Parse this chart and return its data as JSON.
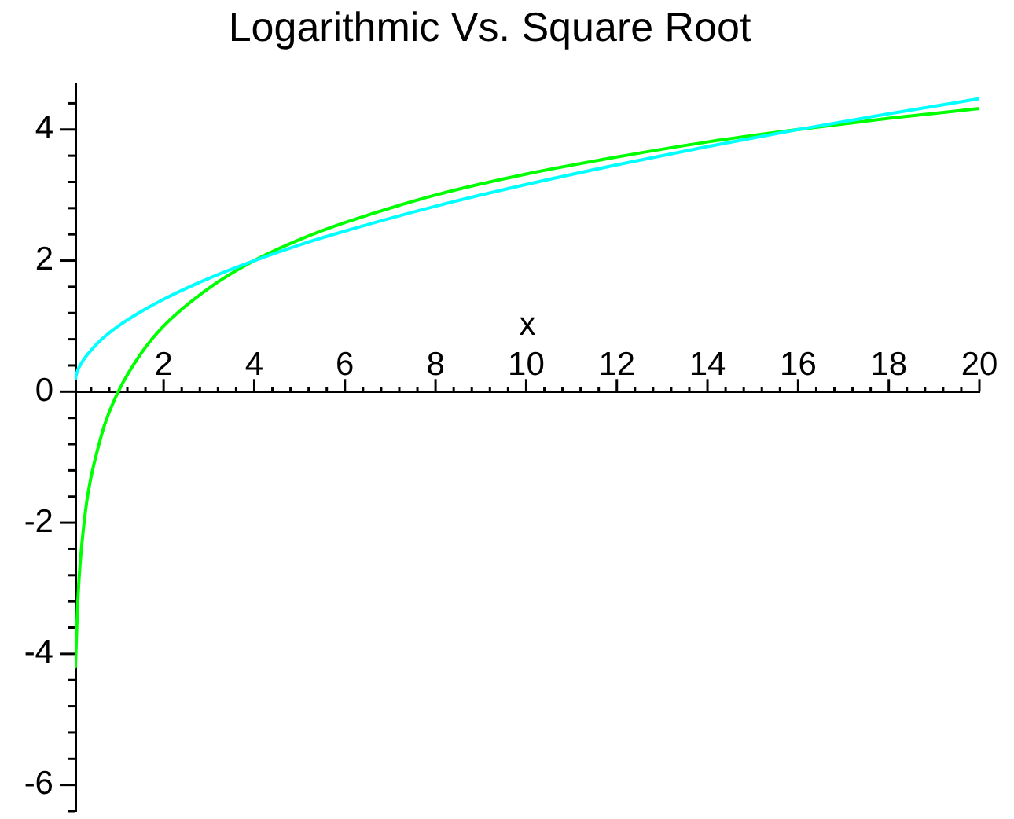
{
  "chart_data": {
    "type": "line",
    "title": "Logarithmic Vs. Square Root",
    "xlabel": "x",
    "x": [
      0.055,
      0.1,
      0.15,
      0.2,
      0.3,
      0.4,
      0.5,
      0.7,
      1,
      1.5,
      2,
      3,
      4,
      5,
      6,
      8,
      10,
      12,
      14,
      16,
      18,
      20
    ],
    "series": [
      {
        "color": "#00ffff",
        "values": [
          0.2,
          0.32,
          0.39,
          0.45,
          0.55,
          0.63,
          0.71,
          0.84,
          1.0,
          1.22,
          1.41,
          1.73,
          2.0,
          2.24,
          2.45,
          2.83,
          3.16,
          3.46,
          3.74,
          4.0,
          4.24,
          4.47
        ]
      },
      {
        "color": "#00ff00",
        "values": [
          -4.2,
          -3.3,
          -2.7,
          -2.3,
          -1.7,
          -1.3,
          -1.0,
          -0.5,
          0,
          0.58,
          1.0,
          1.58,
          2.0,
          2.32,
          2.58,
          3.0,
          3.32,
          3.58,
          3.81,
          4.0,
          4.17,
          4.32
        ]
      }
    ],
    "xlim": [
      0.055,
      20
    ],
    "ylim": [
      -6.4,
      4.7
    ],
    "xticks": [
      {
        "value": 0.4,
        "label": null
      },
      {
        "value": 0.8,
        "label": null
      },
      {
        "value": 1.2,
        "label": null
      },
      {
        "value": 1.6,
        "label": null
      },
      2,
      {
        "value": 2.4,
        "label": null
      },
      {
        "value": 2.8,
        "label": null
      },
      {
        "value": 3.2,
        "label": null
      },
      {
        "value": 3.6,
        "label": null
      },
      4,
      {
        "value": 4.4,
        "label": null
      },
      {
        "value": 4.8,
        "label": null
      },
      {
        "value": 5.2,
        "label": null
      },
      {
        "value": 5.6,
        "label": null
      },
      6,
      {
        "value": 6.4,
        "label": null
      },
      {
        "value": 6.8,
        "label": null
      },
      {
        "value": 7.2,
        "label": null
      },
      {
        "value": 7.6,
        "label": null
      },
      8,
      {
        "value": 8.4,
        "label": null
      },
      {
        "value": 8.8,
        "label": null
      },
      {
        "value": 9.2,
        "label": null
      },
      {
        "value": 9.6,
        "label": null
      },
      10,
      {
        "value": 10.4,
        "label": null
      },
      {
        "value": 10.8,
        "label": null
      },
      {
        "value": 11.2,
        "label": null
      },
      {
        "value": 11.6,
        "label": null
      },
      12,
      {
        "value": 12.4,
        "label": null
      },
      {
        "value": 12.8,
        "label": null
      },
      {
        "value": 13.2,
        "label": null
      },
      {
        "value": 13.6,
        "label": null
      },
      14,
      {
        "value": 14.4,
        "label": null
      },
      {
        "value": 14.8,
        "label": null
      },
      {
        "value": 15.2,
        "label": null
      },
      {
        "value": 15.6,
        "label": null
      },
      16,
      {
        "value": 16.4,
        "label": null
      },
      {
        "value": 16.8,
        "label": null
      },
      {
        "value": 17.2,
        "label": null
      },
      {
        "value": 17.6,
        "label": null
      },
      18,
      {
        "value": 18.4,
        "label": null
      },
      {
        "value": 18.8,
        "label": null
      },
      {
        "value": 19.2,
        "label": null
      },
      {
        "value": 19.6,
        "label": null
      },
      20
    ],
    "yticks": [
      {
        "value": -6.4,
        "label": null
      },
      -6,
      {
        "value": -5.6,
        "label": null
      },
      {
        "value": -5.2,
        "label": null
      },
      {
        "value": -4.8,
        "label": null
      },
      {
        "value": -4.4,
        "label": null
      },
      -4,
      {
        "value": -3.6,
        "label": null
      },
      {
        "value": -3.2,
        "label": null
      },
      {
        "value": -2.8,
        "label": null
      },
      {
        "value": -2.4,
        "label": null
      },
      -2,
      {
        "value": -1.6,
        "label": null
      },
      {
        "value": -1.2,
        "label": null
      },
      {
        "value": -0.8,
        "label": null
      },
      {
        "value": -0.4,
        "label": null
      },
      0,
      {
        "value": 0.4,
        "label": null
      },
      {
        "value": 0.8,
        "label": null
      },
      {
        "value": 1.2,
        "label": null
      },
      {
        "value": 1.6,
        "label": null
      },
      2,
      {
        "value": 2.4,
        "label": null
      },
      {
        "value": 2.8,
        "label": null
      },
      {
        "value": 3.2,
        "label": null
      },
      {
        "value": 3.6,
        "label": null
      },
      4,
      {
        "value": 4.4,
        "label": null
      }
    ],
    "marker": "none"
  }
}
